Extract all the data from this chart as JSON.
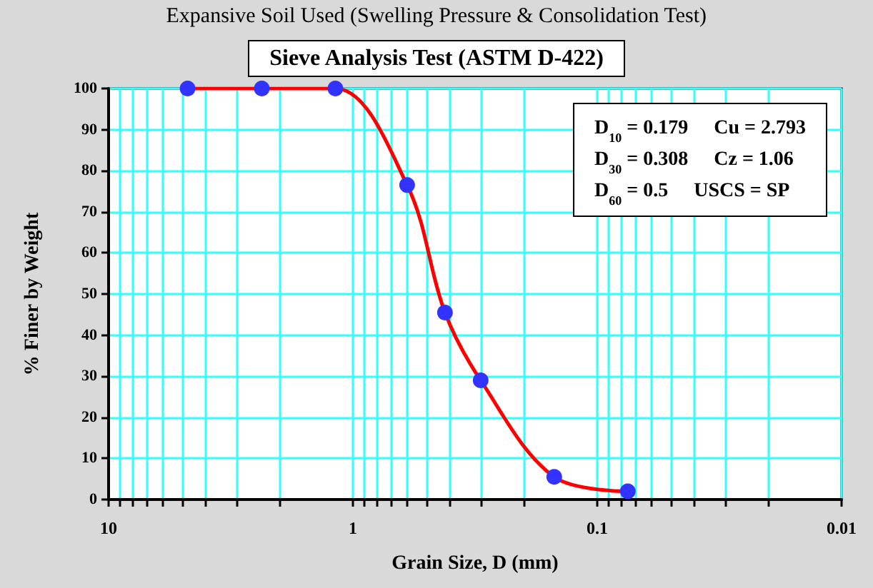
{
  "chart_data": {
    "type": "line",
    "title": "Sieve Analysis Test (ASTM D-422)",
    "xlabel": "Grain Size, D (mm)",
    "ylabel": "% Finer by Weight",
    "annotations": [
      "Expansive Soil Used (Swelling Pressure & Consolidation Test)",
      "D$_{10}$ = 0.179",
      "Cu = 2.793",
      "D$_{30}$ = 0.308",
      "Cz = 1.06",
      "D$_{60}$ = 0.5",
      "USCS = SP"
    ],
    "x": [
      4.75,
      2.36,
      1.18,
      0.6,
      0.42,
      0.3,
      0.15,
      0.075
    ],
    "series": [
      {
        "type": "line",
        "color": "#ff0000",
        "colors": [
          "#3333ff",
          "#3333ff",
          "#3333ff",
          "#3333ff",
          "#3333ff",
          "#3333ff",
          "#3333ff",
          "#3333ff"
        ],
        "marker": "circle",
        "line_style": "solid",
        "values": [
          100,
          100,
          100,
          76.5,
          45.5,
          29,
          5.5,
          2
        ]
      }
    ],
    "log": "x",
    "grid": true,
    "xlim": [
      10,
      0.01
    ],
    "xticks": [
      10,
      {
        "value": 9,
        "label": null
      },
      {
        "value": 8,
        "label": null
      },
      {
        "value": 7,
        "label": null
      },
      {
        "value": 6,
        "label": null
      },
      {
        "value": 5,
        "label": null
      },
      {
        "value": 4,
        "label": null
      },
      {
        "value": 3,
        "label": null
      },
      {
        "value": 2,
        "label": null
      },
      1,
      {
        "value": 0.9,
        "label": null
      },
      {
        "value": 0.8,
        "label": null
      },
      {
        "value": 0.7,
        "label": null
      },
      {
        "value": 0.6,
        "label": null
      },
      {
        "value": 0.5,
        "label": null
      },
      {
        "value": 0.4,
        "label": null
      },
      {
        "value": 0.3,
        "label": null
      },
      {
        "value": 0.2,
        "label": null
      },
      0.1,
      {
        "value": 0.09,
        "label": null
      },
      {
        "value": 0.08,
        "label": null
      },
      {
        "value": 0.07,
        "label": null
      },
      {
        "value": 0.06,
        "label": null
      },
      {
        "value": 0.05,
        "label": null
      },
      {
        "value": 0.04,
        "label": null
      },
      {
        "value": 0.03,
        "label": null
      },
      {
        "value": 0.02,
        "label": null
      },
      0.01
    ],
    "ylim": [
      0,
      100
    ],
    "yticks": [
      0,
      10,
      20,
      30,
      40,
      50,
      60,
      70,
      80,
      90,
      100
    ]
  }
}
